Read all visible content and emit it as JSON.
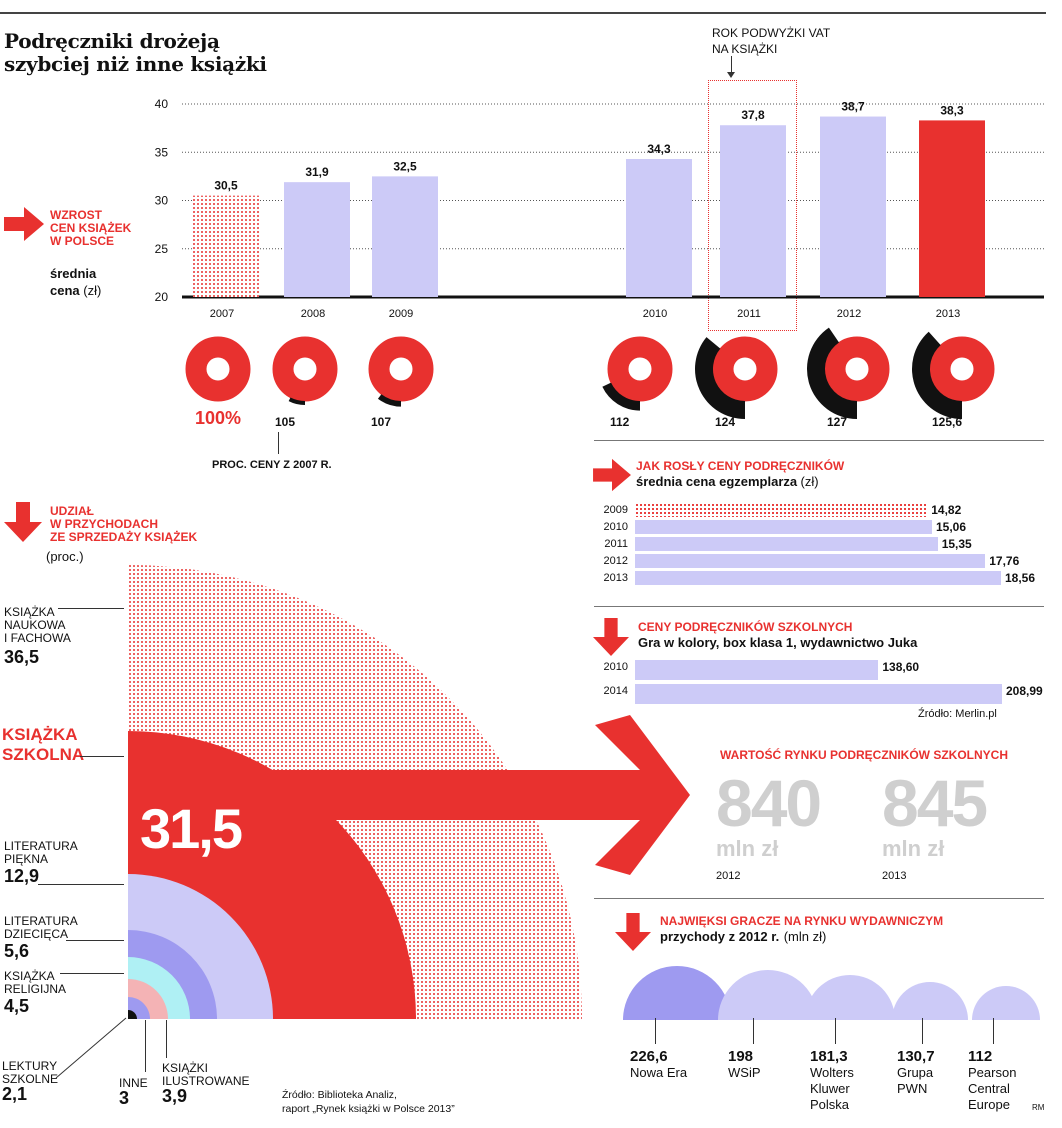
{
  "title": {
    "line1": "Podręczniki drożeją",
    "line2": "szybciej niż inne książki"
  },
  "vat_note": {
    "line1": "ROK PODWYŻKI VAT",
    "line2": "NA KSIĄŻKI"
  },
  "price_section": {
    "label_line1": "WZROST",
    "label_line2": "CEN KSIĄŻEK",
    "label_line3": "W POLSCE",
    "sub_bold_1": "średnia",
    "sub_bold_2": "cena",
    "sub_unit": "(zł)"
  },
  "proc_caption": "PROC. CENY Z 2007 R.",
  "colors": {
    "red": "#e8312f",
    "lavender": "#cccaf7",
    "purple": "#9e9af0",
    "cyan": "#aff0f4",
    "pink": "#f4b3b5",
    "grey": "#cfcfcf"
  },
  "chart_data": [
    {
      "type": "bar",
      "title": "Wzrost cen książek w Polsce — średnia cena (zł)",
      "categories": [
        "2007",
        "2008",
        "2009",
        "2010",
        "2011",
        "2012",
        "2013"
      ],
      "values": [
        30.5,
        31.9,
        32.5,
        34.3,
        37.8,
        38.7,
        38.3
      ],
      "value_labels": [
        "30,5",
        "31,9",
        "32,5",
        "34,3",
        "37,8",
        "38,7",
        "38,3"
      ],
      "ylim": [
        20,
        40
      ],
      "yticks": [
        "20",
        "25",
        "30",
        "35",
        "40"
      ],
      "percent_of_2007": [
        100,
        105,
        107,
        112,
        124,
        127,
        125.6
      ],
      "percent_labels": [
        "100%",
        "105",
        "107",
        "112",
        "124",
        "127",
        "125,6"
      ]
    },
    {
      "type": "bar",
      "title": "Jak rosły ceny podręczników — średnia cena egzemplarza (zł)",
      "heading": "JAK ROSŁY CENY PODRĘCZNIKÓW",
      "sub_bold": "średnia cena egzemplarza",
      "sub_unit": "(zł)",
      "categories": [
        "2009",
        "2010",
        "2011",
        "2012",
        "2013"
      ],
      "values": [
        14.82,
        15.06,
        15.35,
        17.76,
        18.56
      ],
      "value_labels": [
        "14,82",
        "15,06",
        "15,35",
        "17,76",
        "18,56"
      ]
    },
    {
      "type": "bar",
      "title": "Ceny podręczników szkolnych — Gra w kolory, box klasa 1, wydawnictwo Juka",
      "heading": "CENY PODRĘCZNIKÓW SZKOLNYCH",
      "sub_bold": "Gra w kolory, box klasa 1, wydawnictwo Juka",
      "categories": [
        "2010",
        "2014"
      ],
      "values": [
        138.6,
        208.99
      ],
      "value_labels": [
        "138,60",
        "208,99"
      ],
      "source": "Źródło: Merlin.pl"
    },
    {
      "type": "pie",
      "title": "Udział w przychodach ze sprzedaży książek (proc.)",
      "heading_line1": "UDZIAŁ",
      "heading_line2": "W PRZYCHODACH",
      "heading_line3": "ZE SPRZEDAŻY KSIĄŻEK",
      "unit": "(proc.)",
      "slices": [
        {
          "name_lines": [
            "KSIĄŻKA",
            "NAUKOWA",
            "I FACHOWA"
          ],
          "value": 36.5,
          "label": "36,5"
        },
        {
          "name_lines": [
            "KSIĄŻKA",
            "SZKOLNA"
          ],
          "value": 31.5,
          "label": "31,5"
        },
        {
          "name_lines": [
            "LITERATURA",
            "PIĘKNA"
          ],
          "value": 12.9,
          "label": "12,9"
        },
        {
          "name_lines": [
            "LITERATURA",
            "DZIECIĘCA"
          ],
          "value": 5.6,
          "label": "5,6"
        },
        {
          "name_lines": [
            "KSIĄŻKA",
            "RELIGIJNA"
          ],
          "value": 4.5,
          "label": "4,5"
        },
        {
          "name_lines": [
            "KSIĄŻKI",
            "ILUSTROWANE"
          ],
          "value": 3.9,
          "label": "3,9"
        },
        {
          "name_lines": [
            "INNE"
          ],
          "value": 3,
          "label": "3"
        },
        {
          "name_lines": [
            "LEKTURY",
            "SZKOLNE"
          ],
          "value": 2.1,
          "label": "2,1"
        }
      ],
      "source_line1": "Źródło: Biblioteka Analiz,",
      "source_line2": "raport „Rynek książki w Polsce 2013”"
    },
    {
      "type": "table",
      "title": "Wartość rynku podręczników szkolnych",
      "heading": "WARTOŚĆ RYNKU PODRĘCZNIKÓW SZKOLNYCH",
      "items": [
        {
          "value": "840",
          "unit": "mln zł",
          "year": "2012"
        },
        {
          "value": "845",
          "unit": "mln zł",
          "year": "2013"
        }
      ]
    },
    {
      "type": "bar",
      "title": "Najwięksi gracze na rynku wydawniczym — przychody z 2012 r. (mln zł)",
      "heading": "NAJWIĘKSI GRACZE NA RYNKU WYDAWNICZYM",
      "sub_bold": "przychody z 2012 r.",
      "sub_unit": "(mln zł)",
      "categories": [
        "Nowa Era",
        "WSiP",
        "Wolters Kluwer Polska",
        "Grupa PWN",
        "Pearson Central Europe"
      ],
      "name_lines": [
        [
          "Nowa Era"
        ],
        [
          "WSiP"
        ],
        [
          "Wolters",
          "Kluwer",
          "Polska"
        ],
        [
          "Grupa",
          "PWN"
        ],
        [
          "Pearson",
          "Central",
          "Europe"
        ]
      ],
      "values": [
        226.6,
        198,
        181.3,
        130.7,
        112
      ],
      "value_labels": [
        "226,6",
        "198",
        "181,3",
        "130,7",
        "112"
      ]
    }
  ],
  "credit": "RM"
}
